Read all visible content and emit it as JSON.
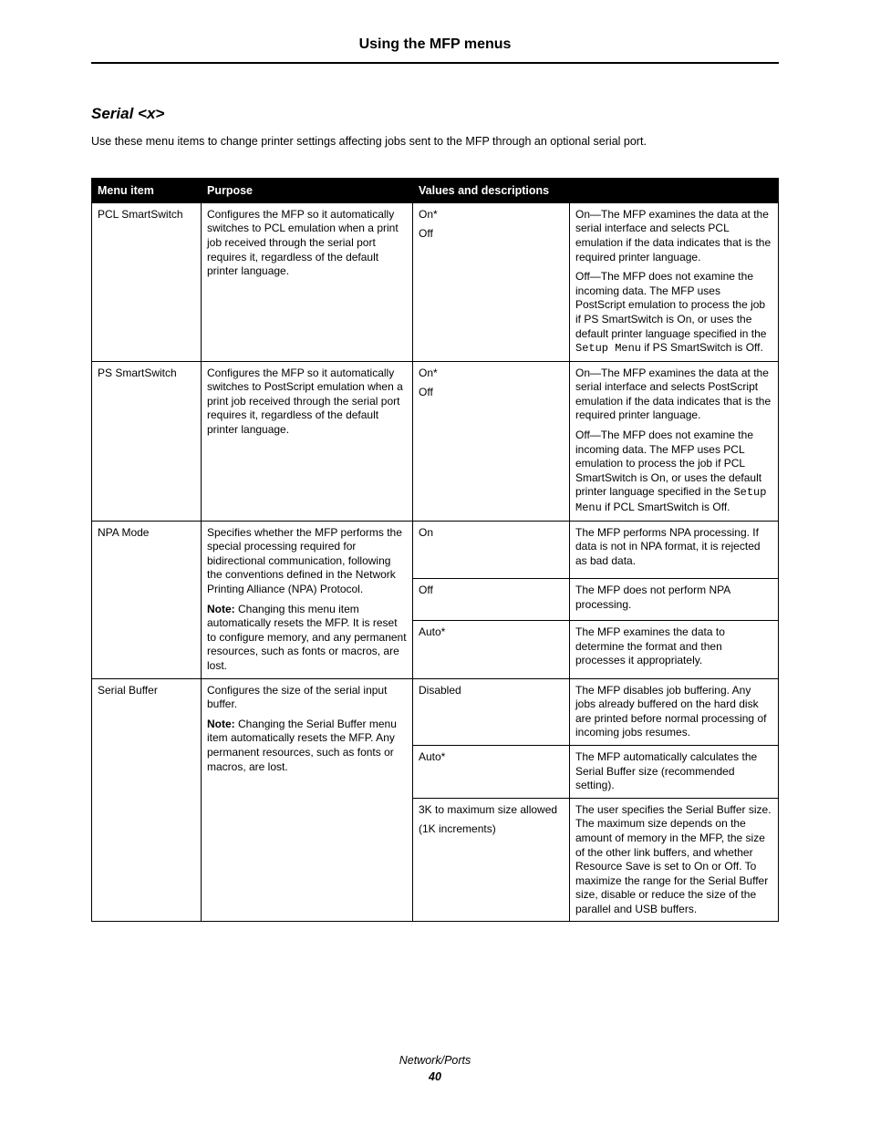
{
  "header": {
    "title": "Using the MFP menus"
  },
  "section": {
    "title": "Serial <x>",
    "intro": "Use these menu items to change printer settings affecting jobs sent to the MFP through an optional serial port."
  },
  "table": {
    "columns": [
      "Menu item",
      "Purpose",
      "Values and descriptions"
    ],
    "setup_menu_code": "Setup Menu",
    "rows": [
      {
        "menu_item": "PCL SmartSwitch",
        "purpose": "Configures the MFP so it automatically switches to PCL emulation when a print job received through the serial port requires it, regardless of the default printer language.",
        "value": [
          "On*",
          "Off"
        ],
        "desc": [
          "On—The MFP examines the data at the serial interface and selects PCL emulation if the data indicates that is the required printer language.",
          "Off—The MFP does not examine the incoming data. The MFP uses PostScript emulation to process the job if PS SmartSwitch is On, or uses the default printer language specified in the {SETUP_MENU} if PS SmartSwitch is Off."
        ],
        "value_rowspan": 1,
        "purpose_rowspan": 1
      },
      {
        "menu_item": "PS SmartSwitch",
        "purpose": "Configures the MFP so it automatically switches to PostScript emulation when a print job received through the serial port requires it, regardless of the default printer language.",
        "value": [
          "On*",
          "Off"
        ],
        "desc": [
          "On—The MFP examines the data at the serial interface and selects PostScript emulation if the data indicates that is the required printer language.",
          "Off—The MFP does not examine the incoming data. The MFP uses PCL emulation to process the job if PCL SmartSwitch is On, or uses the default printer language specified in the {SETUP_MENU} if PCL SmartSwitch is Off."
        ],
        "value_rowspan": 1,
        "purpose_rowspan": 1
      },
      {
        "menu_item": "NPA Mode",
        "purpose_main": "Specifies whether the MFP performs the special processing required for bidirectional communication, following the conventions defined in the Network Printing Alliance (NPA) Protocol.",
        "purpose_note_label": "Note:",
        "purpose_note": " Changing this menu item automatically resets the MFP. It is reset to configure memory, and any permanent resources, such as fonts or macros, are lost.",
        "subrows": [
          {
            "value": "On",
            "desc": "The MFP performs NPA processing. If data is not in NPA format, it is rejected as bad data."
          },
          {
            "value": "Off",
            "desc": "The MFP does not perform NPA processing."
          },
          {
            "value": "Auto*",
            "desc": "The MFP examines the data to determine the format and then processes it appropriately."
          }
        ]
      },
      {
        "menu_item": "Serial Buffer",
        "purpose_main": "Configures the size of the serial input buffer.",
        "purpose_note_label": "Note:",
        "purpose_note": " Changing the Serial Buffer menu item automatically resets the MFP. Any permanent resources, such as fonts or macros, are lost.",
        "subrows": [
          {
            "value": "Disabled",
            "desc": "The MFP disables job buffering. Any jobs already buffered on the hard disk are printed before normal processing of incoming jobs resumes."
          },
          {
            "value": "Auto*",
            "desc": "The MFP automatically calculates the Serial Buffer size (recommended setting)."
          },
          {
            "value_lines": [
              "3K to maximum size allowed",
              "(1K increments)"
            ],
            "desc": "The user specifies the Serial Buffer size. The maximum size depends on the amount of memory in the MFP, the size of the other link buffers, and whether Resource Save is set to On or Off. To maximize the range for the Serial Buffer size, disable or reduce the size of the parallel and USB buffers."
          }
        ]
      }
    ]
  },
  "footer": {
    "section": "Network/Ports",
    "page": "40"
  }
}
